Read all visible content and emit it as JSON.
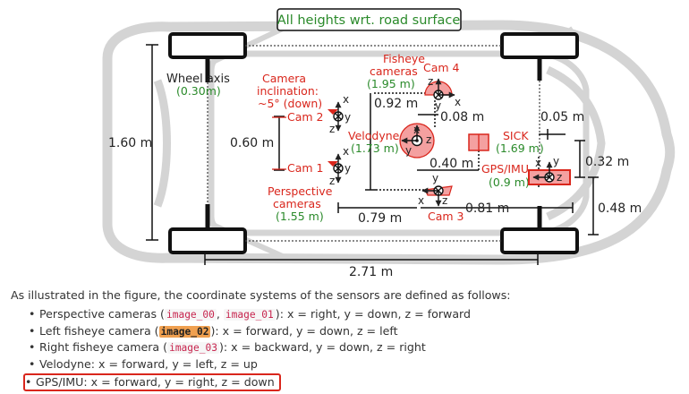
{
  "diagram": {
    "title": "All heights wrt. road surface",
    "labels": {
      "wheel_axis": "Wheel axis",
      "wheel_axis_h": "(0.30m)",
      "cam_incl_1": "Camera",
      "cam_incl_2": "inclination:",
      "cam_incl_3": "~5° (down)",
      "cam2": "Cam 2",
      "cam1": "Cam 1",
      "fisheye_1": "Fisheye",
      "fisheye_2": "cameras",
      "fisheye_h": "(1.95 m)",
      "cam4": "Cam 4",
      "cam3": "Cam 3",
      "velodyne": "Velodyne",
      "velodyne_h": "(1.73 m)",
      "sick": "SICK",
      "sick_h": "(1.69 m)",
      "gps": "GPS/IMU",
      "gps_h": "(0.9 m)",
      "persp_1": "Perspective",
      "persp_2": "cameras",
      "persp_h": "(1.55 m)"
    },
    "dimensions": {
      "car_width": "1.60 m",
      "cam_baseline": "0.60 m",
      "d092": "0.92 m",
      "d008": "0.08 m",
      "d005": "0.05 m",
      "d040": "0.40 m",
      "d032": "0.32 m",
      "d048": "0.48 m",
      "d079": "0.79 m",
      "d081": "0.81 m",
      "wheelbase": "2.71 m"
    },
    "axes": {
      "x": "x",
      "y": "y",
      "z": "z"
    },
    "colors": {
      "red": "#d9261c",
      "green": "#2a8a2a",
      "car": "#d4d4d4"
    }
  },
  "description": {
    "intro": "As illustrated in the figure, the coordinate systems of the sensors are defined as follows:",
    "items": [
      {
        "pre": "Perspective cameras (",
        "code1": "image_00",
        "sep": ", ",
        "code2": "image_01",
        "post": "): x = right, y = down, z = forward"
      },
      {
        "pre": "Left fisheye camera (",
        "code1": "image_02",
        "post": "): x = forward, y = down, z = left"
      },
      {
        "pre": "Right fisheye camera (",
        "code1": "image_03",
        "post": "): x = backward, y = down, z = right"
      },
      {
        "text": "Velodyne: x = forward, y = left, z = up"
      },
      {
        "text": "GPS/IMU: x = forward, y = right, z = down"
      }
    ]
  }
}
